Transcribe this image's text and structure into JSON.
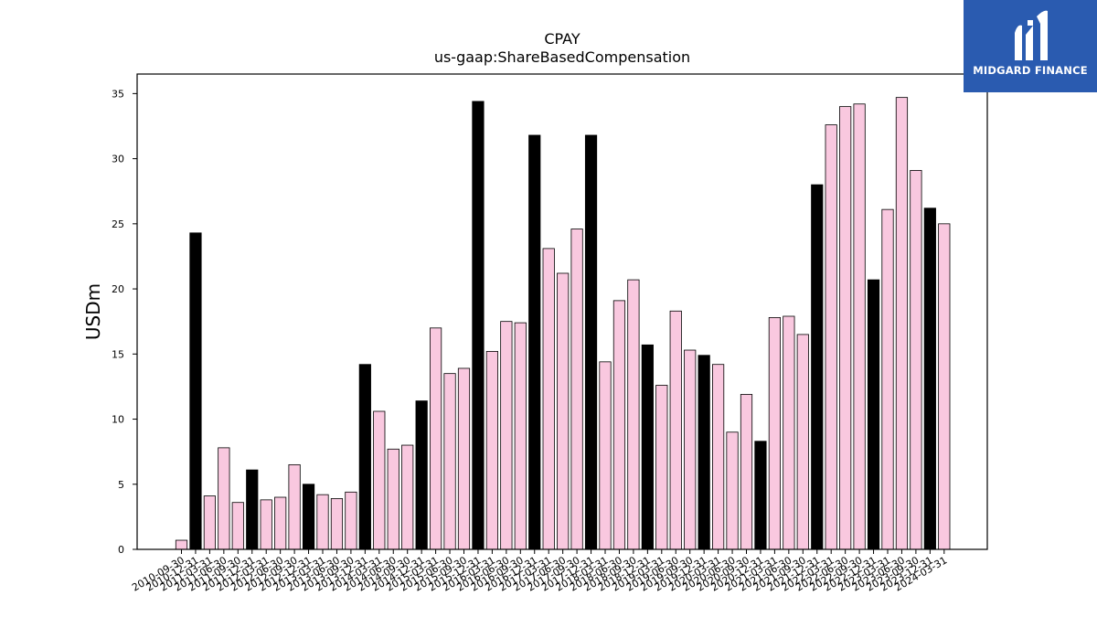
{
  "brand": {
    "name": "MIDGARD FINANCE",
    "logo_icon": "midgard-logo-icon",
    "background": "#2a5bb0"
  },
  "chart_data": {
    "type": "bar",
    "title": "CPAY",
    "subtitle": "us-gaap:ShareBasedCompensation",
    "xlabel": "",
    "ylabel": "USDm",
    "ylim": [
      0,
      36.5
    ],
    "yticks": [
      0,
      5,
      10,
      15,
      20,
      25,
      30,
      35
    ],
    "grid": false,
    "colors": {
      "quarter": "#f9c8df",
      "annual": "#000000",
      "edge": "#000000"
    },
    "categories": [
      "2010-09-30",
      "2010-12-31",
      "2011-03-31",
      "2011-06-30",
      "2011-09-30",
      "2011-12-31",
      "2012-03-31",
      "2012-06-30",
      "2012-09-30",
      "2012-12-31",
      "2013-03-31",
      "2013-06-30",
      "2013-09-30",
      "2013-12-31",
      "2014-03-31",
      "2014-06-30",
      "2014-09-30",
      "2014-12-31",
      "2015-03-31",
      "2015-06-30",
      "2015-09-30",
      "2015-12-31",
      "2016-03-31",
      "2016-06-30",
      "2016-09-30",
      "2016-12-31",
      "2017-03-31",
      "2017-06-30",
      "2017-09-30",
      "2017-12-31",
      "2018-03-31",
      "2018-06-30",
      "2018-09-30",
      "2018-12-31",
      "2019-03-31",
      "2019-06-30",
      "2019-09-30",
      "2019-12-31",
      "2020-03-31",
      "2020-06-30",
      "2020-09-30",
      "2020-12-31",
      "2021-03-31",
      "2021-06-30",
      "2021-09-30",
      "2021-12-31",
      "2022-03-31",
      "2022-06-30",
      "2022-09-30",
      "2022-12-31",
      "2023-03-31",
      "2023-06-30",
      "2023-09-30",
      "2023-12-31",
      "2024-03-31"
    ],
    "series": [
      {
        "values": [
          0.7,
          24.3,
          4.1,
          7.8,
          3.6,
          6.1,
          3.8,
          4.0,
          6.5,
          5.0,
          4.2,
          3.9,
          4.4,
          14.2,
          10.6,
          7.7,
          8.0,
          11.4,
          17.0,
          13.5,
          13.9,
          34.4,
          15.2,
          17.5,
          17.4,
          31.8,
          23.1,
          21.2,
          24.6,
          31.8,
          14.4,
          19.1,
          20.7,
          15.7,
          12.6,
          18.3,
          15.3,
          14.9,
          14.2,
          9.0,
          11.9,
          8.3,
          17.8,
          17.9,
          16.5,
          28.0,
          32.6,
          34.0,
          34.2,
          20.7,
          26.1,
          34.7,
          29.1,
          26.2,
          25.0
        ],
        "annual": [
          false,
          true,
          false,
          false,
          false,
          true,
          false,
          false,
          false,
          true,
          false,
          false,
          false,
          true,
          false,
          false,
          false,
          true,
          false,
          false,
          false,
          true,
          false,
          false,
          false,
          true,
          false,
          false,
          false,
          true,
          false,
          false,
          false,
          true,
          false,
          false,
          false,
          true,
          false,
          false,
          false,
          true,
          false,
          false,
          false,
          true,
          false,
          false,
          false,
          true,
          false,
          false,
          false,
          true,
          false
        ]
      }
    ]
  }
}
